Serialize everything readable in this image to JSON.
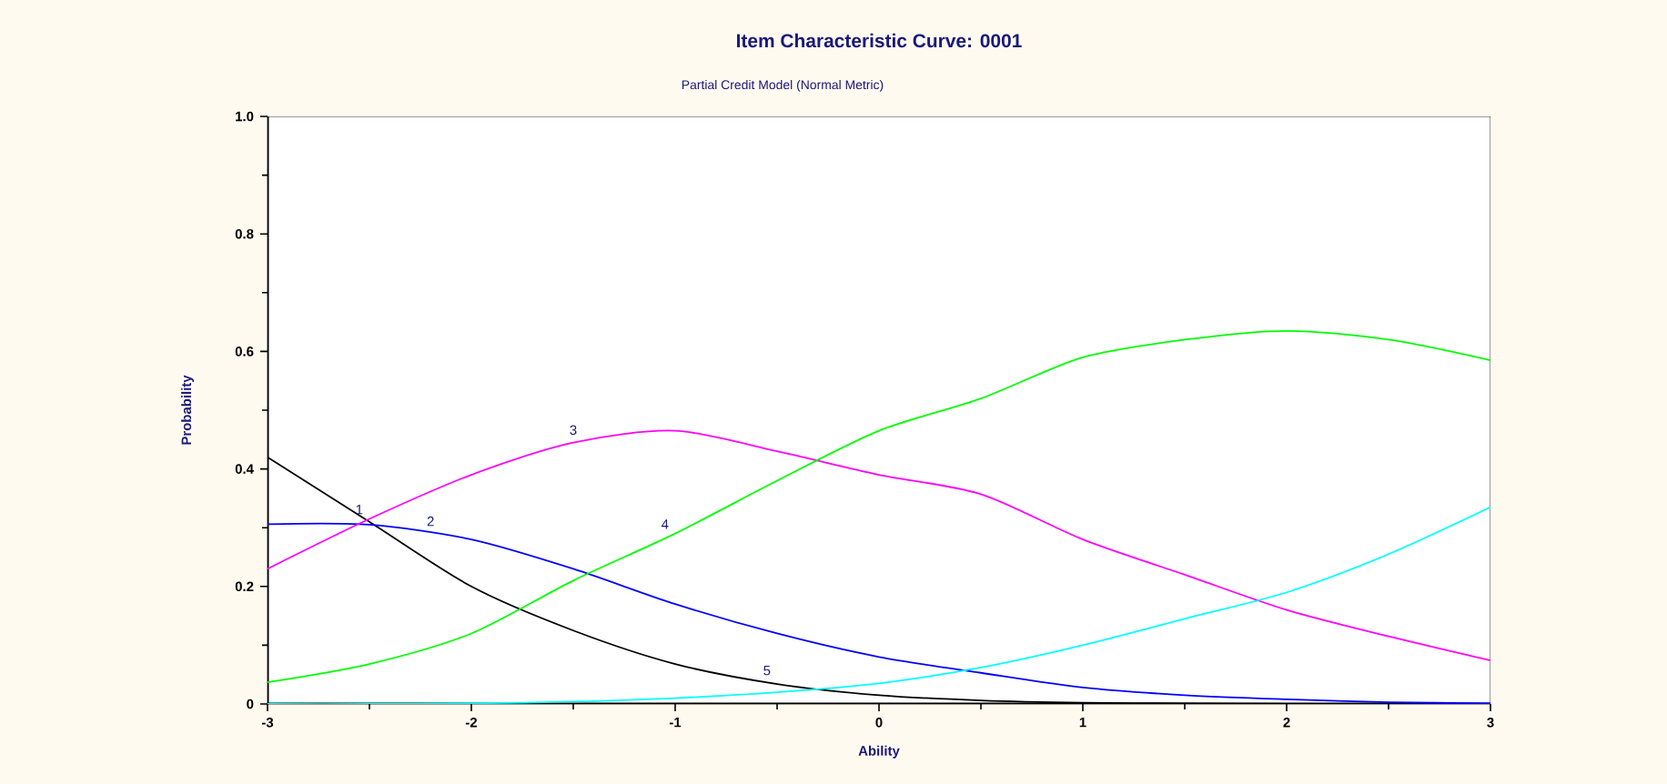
{
  "chart_data": {
    "type": "line",
    "title": "Item Characteristic Curve: 0001",
    "subtitle": "Partial Credit Model (Normal Metric)",
    "xlabel": "Ability",
    "ylabel": "Probability",
    "x": [
      -3,
      -2.5,
      -2,
      -1.5,
      -1,
      -0.5,
      0,
      0.5,
      1,
      1.5,
      2,
      2.5,
      3
    ],
    "series": [
      {
        "color": "#000000",
        "values": [
          0.42,
          0.31,
          0.2,
          0.125,
          0.068,
          0.034,
          0.015,
          0.006,
          0.002,
          0.001,
          0,
          0,
          0
        ]
      },
      {
        "color": "#0000ff",
        "values": [
          0.306,
          0.305,
          0.28,
          0.23,
          0.17,
          0.12,
          0.08,
          0.053,
          0.028,
          0.015,
          0.008,
          0.003,
          0.001
        ]
      },
      {
        "color": "#ff00ff",
        "values": [
          0.23,
          0.315,
          0.39,
          0.445,
          0.465,
          0.43,
          0.39,
          0.357,
          0.28,
          0.22,
          0.16,
          0.115,
          0.074
        ]
      },
      {
        "color": "#00ff00",
        "values": [
          0.037,
          0.068,
          0.12,
          0.21,
          0.29,
          0.38,
          0.465,
          0.52,
          0.59,
          0.62,
          0.635,
          0.62,
          0.585
        ]
      },
      {
        "color": "#00ffff",
        "values": [
          0,
          0,
          0.001,
          0.004,
          0.01,
          0.02,
          0.035,
          0.062,
          0.1,
          0.145,
          0.19,
          0.255,
          0.335
        ]
      }
    ],
    "annotations": [
      {
        "text": "1",
        "x": -2.55,
        "y": 0.31
      },
      {
        "text": "2",
        "x": -2.2,
        "y": 0.29
      },
      {
        "text": "3",
        "x": -1.5,
        "y": 0.445
      },
      {
        "text": "4",
        "x": -1.05,
        "y": 0.285
      },
      {
        "text": "5",
        "x": -0.55,
        "y": 0.036
      }
    ],
    "xlim": [
      -3,
      3
    ],
    "ylim": [
      0,
      1
    ],
    "xticks": [
      -3,
      -2,
      -1,
      0,
      1,
      2,
      3
    ],
    "yticks": [
      0,
      0.2,
      0.4,
      0.6,
      0.8,
      {
        "value": 1,
        "label": "1.0"
      }
    ],
    "grid": false,
    "legend": false,
    "marker": "none",
    "line_style": "solid"
  }
}
